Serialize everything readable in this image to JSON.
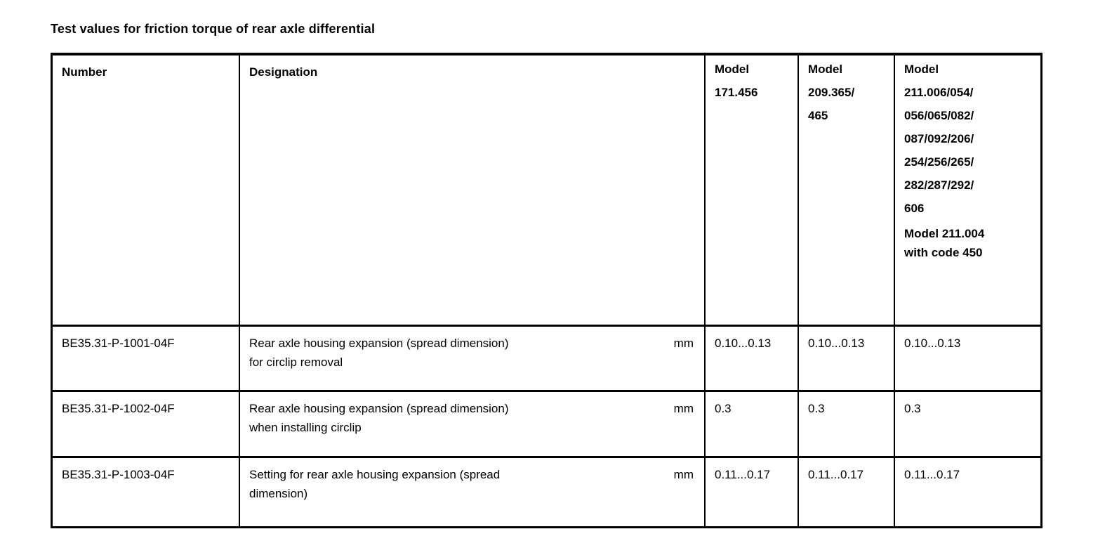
{
  "page": {
    "title": "Test values for friction torque of rear axle differential"
  },
  "table": {
    "header": {
      "number": "Number",
      "designation": "Designation",
      "models": [
        {
          "lines": "Model\n171.456"
        },
        {
          "lines": "Model\n209.365/\n465"
        },
        {
          "lines": "Model\n211.006/054/\n056/065/082/\n087/092/206/\n254/256/265/\n282/287/292/\n606",
          "note": "Model 211.004\nwith code 450"
        }
      ]
    },
    "rows": [
      {
        "number": "BE35.31-P-1001-04F",
        "designation": "Rear axle housing expansion (spread dimension)\nfor circlip removal",
        "unit": "mm",
        "values": [
          "0.10...0.13",
          "0.10...0.13",
          "0.10...0.13"
        ]
      },
      {
        "number": "BE35.31-P-1002-04F",
        "designation": "Rear axle housing expansion (spread dimension)\nwhen installing circlip",
        "unit": "mm",
        "values": [
          "0.3",
          "0.3",
          "0.3"
        ]
      },
      {
        "number": "BE35.31-P-1003-04F",
        "designation": "Setting for rear axle housing expansion (spread\ndimension)",
        "unit": "mm",
        "values": [
          "0.11...0.17",
          "0.11...0.17",
          "0.11...0.17"
        ]
      }
    ]
  }
}
